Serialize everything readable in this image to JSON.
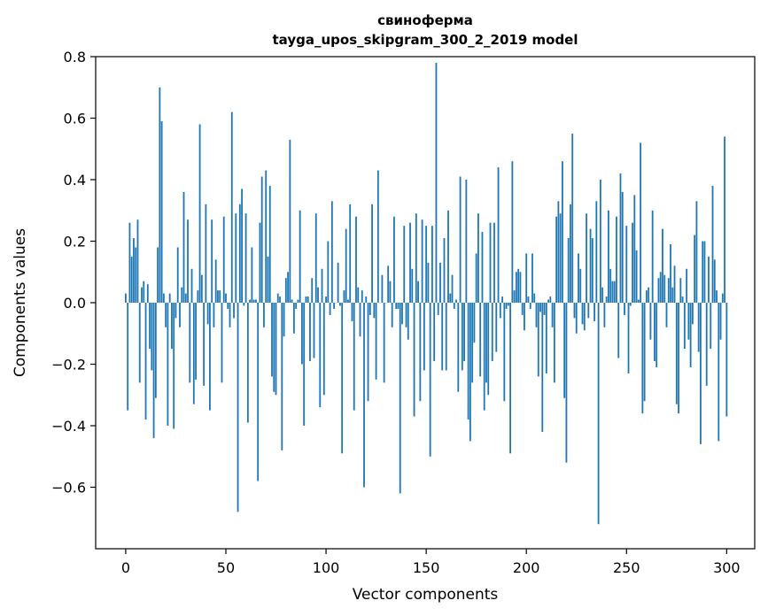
{
  "chart_data": {
    "type": "bar",
    "title": "свиноферма",
    "subtitle": "tayga_upos_skipgram_300_2_2019 model",
    "xlabel": "Vector components",
    "ylabel": "Components values",
    "xlim": [
      -15,
      314
    ],
    "ylim": [
      -0.8,
      0.8
    ],
    "xticks": [
      0,
      50,
      100,
      150,
      200,
      250,
      300
    ],
    "yticks": [
      -0.6,
      -0.4,
      -0.2,
      0.0,
      0.2,
      0.4,
      0.6,
      0.8
    ],
    "ytick_labels": [
      "−0.6",
      "−0.4",
      "−0.2",
      "0.0",
      "0.2",
      "0.4",
      "0.6",
      "0.8"
    ],
    "color": "#1f77b4",
    "x": "0..299",
    "values": [
      0.03,
      -0.35,
      0.26,
      0.15,
      0.21,
      0.18,
      0.27,
      -0.26,
      0.05,
      0.07,
      -0.38,
      0.06,
      -0.15,
      -0.22,
      -0.44,
      -0.31,
      0.18,
      0.7,
      0.59,
      0.03,
      -0.08,
      -0.4,
      0.03,
      -0.15,
      -0.41,
      -0.05,
      0.18,
      -0.08,
      0.05,
      0.36,
      0.03,
      0.27,
      -0.26,
      0.11,
      -0.33,
      -0.25,
      0.04,
      0.58,
      0.09,
      -0.27,
      0.32,
      -0.07,
      -0.35,
      0.27,
      -0.08,
      0.14,
      0.04,
      0.04,
      -0.26,
      0.28,
      0.03,
      -0.02,
      -0.08,
      0.62,
      -0.05,
      0.29,
      -0.68,
      0.32,
      0.37,
      -0.01,
      0.29,
      -0.39,
      0.01,
      0.18,
      0.01,
      0.01,
      -0.58,
      0.26,
      0.41,
      -0.08,
      0.43,
      0.15,
      0.38,
      -0.24,
      -0.29,
      -0.3,
      0.03,
      0.02,
      -0.48,
      -0.11,
      0.08,
      0.1,
      0.53,
      0.01,
      -0.1,
      -0.02,
      0.01,
      0.3,
      -0.2,
      -0.4,
      0.02,
      0.02,
      -0.19,
      0.08,
      -0.18,
      0.29,
      0.05,
      -0.34,
      0.11,
      -0.3,
      0.02,
      0.2,
      -0.04,
      0.33,
      -0.02,
      0.0,
      0.13,
      -0.01,
      -0.49,
      0.04,
      0.24,
      0.01,
      0.32,
      -0.06,
      -0.35,
      0.28,
      0.05,
      -0.11,
      0.04,
      -0.6,
      0.02,
      -0.32,
      -0.04,
      0.32,
      -0.05,
      -0.25,
      0.43,
      0.0,
      0.09,
      -0.26,
      0.0,
      0.12,
      0.07,
      -0.08,
      0.28,
      -0.02,
      -0.02,
      -0.62,
      -0.07,
      0.25,
      -0.08,
      -0.12,
      0.26,
      0.11,
      -0.37,
      0.29,
      0.07,
      -0.32,
      0.27,
      -0.22,
      0.25,
      0.13,
      -0.5,
      0.25,
      -0.19,
      0.78,
      -0.04,
      0.13,
      -0.22,
      0.21,
      -0.22,
      0.3,
      0.03,
      0.09,
      -0.02,
      0.01,
      -0.29,
      0.41,
      -0.22,
      -0.19,
      0.4,
      -0.38,
      -0.45,
      -0.26,
      -0.13,
      0.16,
      0.29,
      -0.24,
      0.23,
      -0.35,
      -0.26,
      -0.3,
      0.26,
      -0.19,
      0.26,
      -0.16,
      0.44,
      -0.05,
      0.02,
      -0.32,
      -0.02,
      -0.01,
      -0.49,
      0.46,
      0.04,
      0.1,
      0.11,
      0.1,
      -0.04,
      -0.09,
      0.16,
      0.02,
      -0.02,
      0.16,
      0.03,
      -0.08,
      -0.24,
      -0.03,
      -0.42,
      -0.04,
      -0.23,
      0.01,
      0.02,
      -0.08,
      -0.26,
      0.28,
      0.33,
      0.29,
      0.46,
      -0.31,
      -0.52,
      0.21,
      0.32,
      0.55,
      -0.05,
      -0.1,
      0.16,
      0.11,
      -0.07,
      -0.09,
      0.29,
      -0.05,
      0.24,
      0.21,
      -0.06,
      0.33,
      -0.72,
      0.4,
      0.05,
      -0.08,
      0.02,
      0.3,
      0.11,
      0.07,
      0.07,
      0.28,
      -0.18,
      0.42,
      0.36,
      -0.04,
      0.25,
      -0.23,
      -0.01,
      0.26,
      0.35,
      0.17,
      0.01,
      0.52,
      -0.36,
      -0.32,
      0.04,
      0.05,
      -0.12,
      0.3,
      -0.19,
      -0.21,
      0.08,
      0.1,
      0.24,
      0.09,
      -0.08,
      0.08,
      0.19,
      0.05,
      0.12,
      -0.33,
      -0.36,
      0.08,
      0.02,
      -0.15,
      0.11,
      -0.12,
      -0.21,
      -0.07,
      0.22,
      0.33,
      -0.16,
      -0.46,
      0.2,
      0.2,
      -0.27,
      0.15,
      -0.15,
      0.38,
      0.14,
      0.04,
      -0.45,
      -0.12,
      0.03,
      0.54,
      -0.37
    ]
  }
}
